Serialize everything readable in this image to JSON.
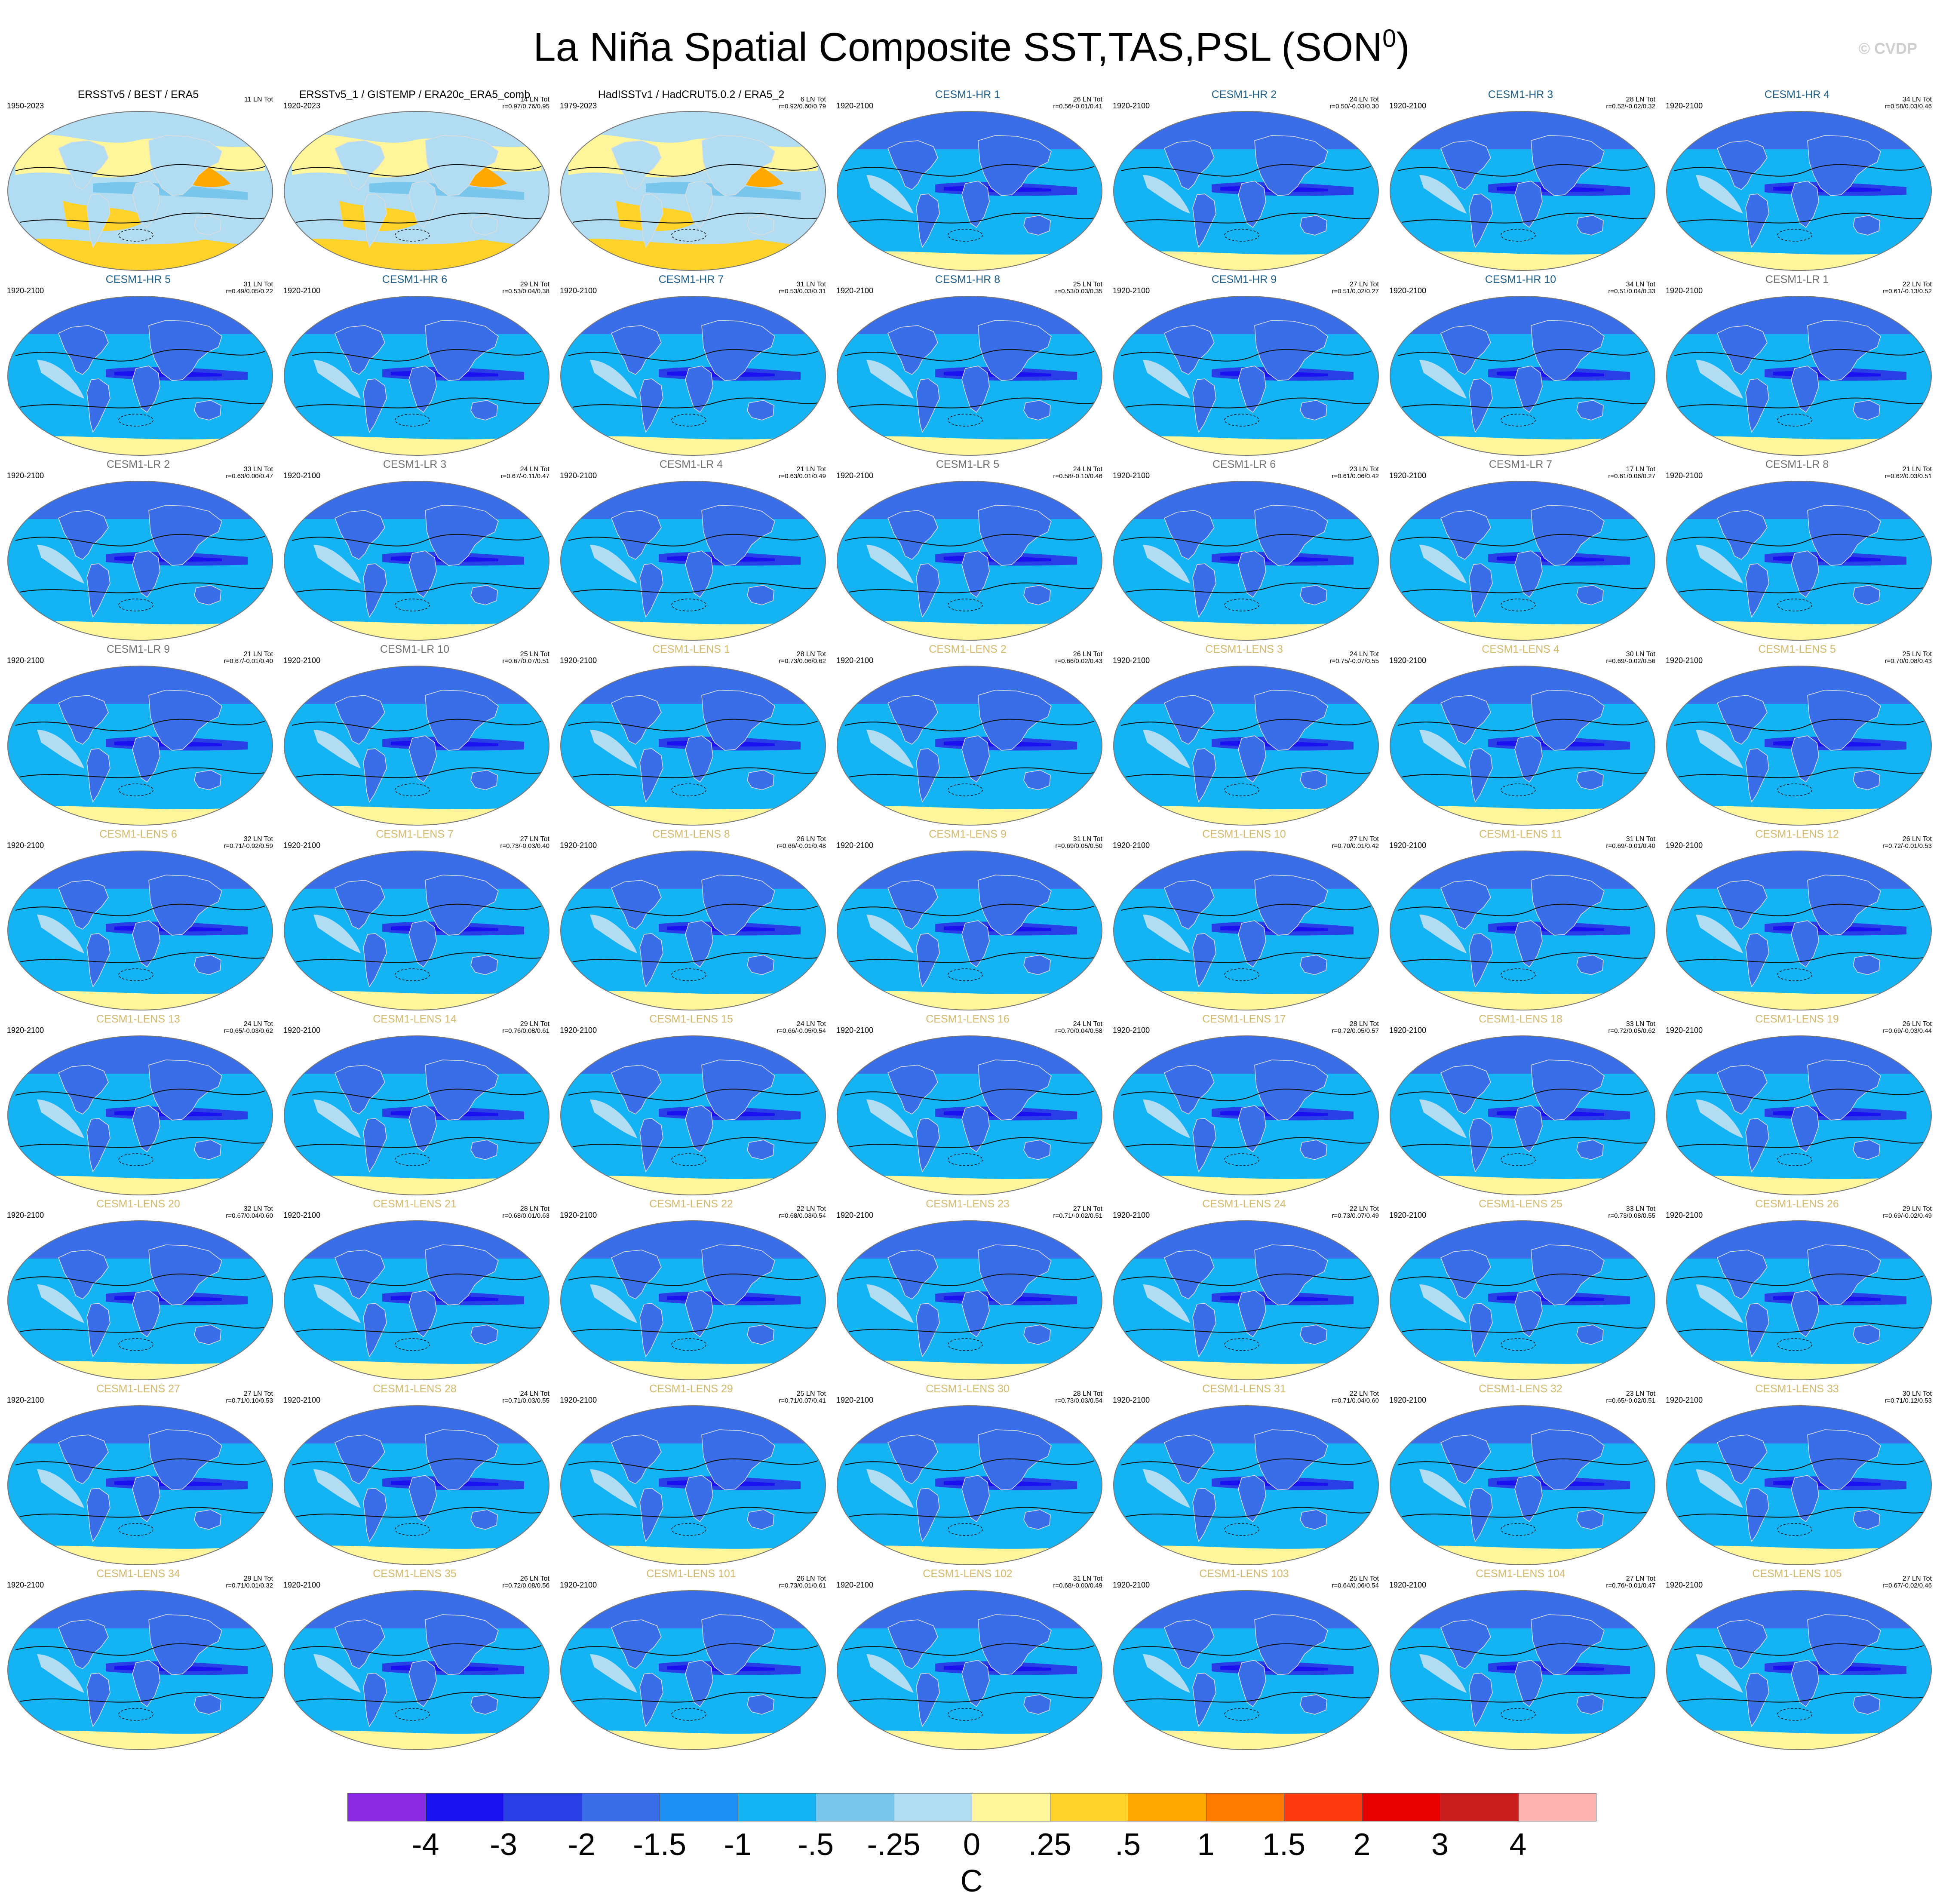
{
  "figure": {
    "title_main": "La Niña Spatial Composite SST,TAS,PSL (SON",
    "title_sup": "0",
    "title_end": ")",
    "watermark": "© CVDP",
    "units": "C"
  },
  "chart_data": {
    "type": "heatmap",
    "description_type": "panel_grid_of_global_maps",
    "colorbar": {
      "levels": [
        "-4",
        "-3",
        "-2",
        "-1.5",
        "-1",
        "-.5",
        "-.25",
        "0",
        ".25",
        ".5",
        "1",
        "1.5",
        "2",
        "3",
        "4"
      ],
      "colors": [
        "#8a2be2",
        "#1a10f0",
        "#2a3ee6",
        "#3a6ee8",
        "#1e90f4",
        "#14b4f4",
        "#78c6ec",
        "#b2dcf2",
        "#fff59a",
        "#ffd22a",
        "#ffa800",
        "#ff7a00",
        "#ff3a10",
        "#e60000",
        "#c81e1e",
        "#ffb4b4"
      ]
    },
    "panels": [
      {
        "title": "ERSSTv5 / BEST / ERA5",
        "title_color": "#000000",
        "period": "1950-2023",
        "count": "11 LN Tot",
        "stats": "",
        "style": "obs"
      },
      {
        "title": "ERSSTv5_1 / GISTEMP / ERA20c_ERA5_comb",
        "title_color": "#000000",
        "period": "1920-2023",
        "count": "14 LN Tot",
        "stats": "r=0.97/0.76/0.95",
        "style": "obs"
      },
      {
        "title": "HadISSTv1 / HadCRUT5.0.2 / ERA5_2",
        "title_color": "#000000",
        "period": "1979-2023",
        "count": "6 LN Tot",
        "stats": "r=0.92/0.60/0.79",
        "style": "obs"
      },
      {
        "title": "CESM1-HR 1",
        "title_color": "#1f5f8b",
        "period": "1920-2100",
        "count": "26 LN Tot",
        "stats": "r=0.56/-0.01/0.41",
        "style": "model"
      },
      {
        "title": "CESM1-HR 2",
        "title_color": "#1f5f8b",
        "period": "1920-2100",
        "count": "24 LN Tot",
        "stats": "r=0.50/-0.03/0.30",
        "style": "model"
      },
      {
        "title": "CESM1-HR 3",
        "title_color": "#1f5f8b",
        "period": "1920-2100",
        "count": "28 LN Tot",
        "stats": "r=0.52/-0.02/0.32",
        "style": "model"
      },
      {
        "title": "CESM1-HR 4",
        "title_color": "#1f5f8b",
        "period": "1920-2100",
        "count": "34 LN Tot",
        "stats": "r=0.58/0.03/0.46",
        "style": "model"
      },
      {
        "title": "CESM1-HR 5",
        "title_color": "#1f5f8b",
        "period": "1920-2100",
        "count": "31 LN Tot",
        "stats": "r=0.49/0.05/0.22",
        "style": "model"
      },
      {
        "title": "CESM1-HR 6",
        "title_color": "#1f5f8b",
        "period": "1920-2100",
        "count": "29 LN Tot",
        "stats": "r=0.53/0.04/0.38",
        "style": "model"
      },
      {
        "title": "CESM1-HR 7",
        "title_color": "#1f5f8b",
        "period": "1920-2100",
        "count": "31 LN Tot",
        "stats": "r=0.53/0.03/0.31",
        "style": "model"
      },
      {
        "title": "CESM1-HR 8",
        "title_color": "#1f5f8b",
        "period": "1920-2100",
        "count": "25 LN Tot",
        "stats": "r=0.53/0.03/0.35",
        "style": "model"
      },
      {
        "title": "CESM1-HR 9",
        "title_color": "#1f5f8b",
        "period": "1920-2100",
        "count": "27 LN Tot",
        "stats": "r=0.51/0.02/0.27",
        "style": "model"
      },
      {
        "title": "CESM1-HR 10",
        "title_color": "#1f5f8b",
        "period": "1920-2100",
        "count": "34 LN Tot",
        "stats": "r=0.51/0.04/0.33",
        "style": "model"
      },
      {
        "title": "CESM1-LR 1",
        "title_color": "#707070",
        "period": "1920-2100",
        "count": "22 LN Tot",
        "stats": "r=0.61/-0.13/0.52",
        "style": "model"
      },
      {
        "title": "CESM1-LR 2",
        "title_color": "#707070",
        "period": "1920-2100",
        "count": "33 LN Tot",
        "stats": "r=0.63/0.00/0.47",
        "style": "model"
      },
      {
        "title": "CESM1-LR 3",
        "title_color": "#707070",
        "period": "1920-2100",
        "count": "24 LN Tot",
        "stats": "r=0.67/-0.11/0.47",
        "style": "model"
      },
      {
        "title": "CESM1-LR 4",
        "title_color": "#707070",
        "period": "1920-2100",
        "count": "21 LN Tot",
        "stats": "r=0.63/0.01/0.49",
        "style": "model"
      },
      {
        "title": "CESM1-LR 5",
        "title_color": "#707070",
        "period": "1920-2100",
        "count": "24 LN Tot",
        "stats": "r=0.58/-0.10/0.46",
        "style": "model"
      },
      {
        "title": "CESM1-LR 6",
        "title_color": "#707070",
        "period": "1920-2100",
        "count": "23 LN Tot",
        "stats": "r=0.61/0.06/0.42",
        "style": "model"
      },
      {
        "title": "CESM1-LR 7",
        "title_color": "#707070",
        "period": "1920-2100",
        "count": "17 LN Tot",
        "stats": "r=0.61/0.06/0.27",
        "style": "model"
      },
      {
        "title": "CESM1-LR 8",
        "title_color": "#707070",
        "period": "1920-2100",
        "count": "21 LN Tot",
        "stats": "r=0.62/0.03/0.51",
        "style": "model"
      },
      {
        "title": "CESM1-LR 9",
        "title_color": "#707070",
        "period": "1920-2100",
        "count": "21 LN Tot",
        "stats": "r=0.67/-0.01/0.40",
        "style": "model"
      },
      {
        "title": "CESM1-LR 10",
        "title_color": "#707070",
        "period": "1920-2100",
        "count": "25 LN Tot",
        "stats": "r=0.67/0.07/0.51",
        "style": "model"
      },
      {
        "title": "CESM1-LENS 1",
        "title_color": "#d4b96a",
        "period": "1920-2100",
        "count": "28 LN Tot",
        "stats": "r=0.73/0.06/0.62",
        "style": "model"
      },
      {
        "title": "CESM1-LENS 2",
        "title_color": "#d4b96a",
        "period": "1920-2100",
        "count": "26 LN Tot",
        "stats": "r=0.66/0.02/0.43",
        "style": "model"
      },
      {
        "title": "CESM1-LENS 3",
        "title_color": "#d4b96a",
        "period": "1920-2100",
        "count": "24 LN Tot",
        "stats": "r=0.75/-0.07/0.55",
        "style": "model"
      },
      {
        "title": "CESM1-LENS 4",
        "title_color": "#d4b96a",
        "period": "1920-2100",
        "count": "30 LN Tot",
        "stats": "r=0.69/-0.02/0.56",
        "style": "model"
      },
      {
        "title": "CESM1-LENS 5",
        "title_color": "#d4b96a",
        "period": "1920-2100",
        "count": "25 LN Tot",
        "stats": "r=0.70/0.08/0.43",
        "style": "model"
      },
      {
        "title": "CESM1-LENS 6",
        "title_color": "#d4b96a",
        "period": "1920-2100",
        "count": "32 LN Tot",
        "stats": "r=0.71/-0.02/0.59",
        "style": "model"
      },
      {
        "title": "CESM1-LENS 7",
        "title_color": "#d4b96a",
        "period": "1920-2100",
        "count": "27 LN Tot",
        "stats": "r=0.73/-0.03/0.40",
        "style": "model"
      },
      {
        "title": "CESM1-LENS 8",
        "title_color": "#d4b96a",
        "period": "1920-2100",
        "count": "26 LN Tot",
        "stats": "r=0.66/-0.01/0.48",
        "style": "model"
      },
      {
        "title": "CESM1-LENS 9",
        "title_color": "#d4b96a",
        "period": "1920-2100",
        "count": "31 LN Tot",
        "stats": "r=0.69/0.05/0.50",
        "style": "model"
      },
      {
        "title": "CESM1-LENS 10",
        "title_color": "#d4b96a",
        "period": "1920-2100",
        "count": "27 LN Tot",
        "stats": "r=0.70/0.01/0.42",
        "style": "model"
      },
      {
        "title": "CESM1-LENS 11",
        "title_color": "#d4b96a",
        "period": "1920-2100",
        "count": "31 LN Tot",
        "stats": "r=0.69/-0.01/0.40",
        "style": "model"
      },
      {
        "title": "CESM1-LENS 12",
        "title_color": "#d4b96a",
        "period": "1920-2100",
        "count": "26 LN Tot",
        "stats": "r=0.72/-0.01/0.53",
        "style": "model"
      },
      {
        "title": "CESM1-LENS 13",
        "title_color": "#d4b96a",
        "period": "1920-2100",
        "count": "24 LN Tot",
        "stats": "r=0.65/-0.03/0.62",
        "style": "model"
      },
      {
        "title": "CESM1-LENS 14",
        "title_color": "#d4b96a",
        "period": "1920-2100",
        "count": "29 LN Tot",
        "stats": "r=0.76/0.08/0.61",
        "style": "model"
      },
      {
        "title": "CESM1-LENS 15",
        "title_color": "#d4b96a",
        "period": "1920-2100",
        "count": "24 LN Tot",
        "stats": "r=0.66/-0.05/0.54",
        "style": "model"
      },
      {
        "title": "CESM1-LENS 16",
        "title_color": "#d4b96a",
        "period": "1920-2100",
        "count": "24 LN Tot",
        "stats": "r=0.70/0.04/0.58",
        "style": "model"
      },
      {
        "title": "CESM1-LENS 17",
        "title_color": "#d4b96a",
        "period": "1920-2100",
        "count": "28 LN Tot",
        "stats": "r=0.72/0.05/0.57",
        "style": "model"
      },
      {
        "title": "CESM1-LENS 18",
        "title_color": "#d4b96a",
        "period": "1920-2100",
        "count": "33 LN Tot",
        "stats": "r=0.72/0.05/0.62",
        "style": "model"
      },
      {
        "title": "CESM1-LENS 19",
        "title_color": "#d4b96a",
        "period": "1920-2100",
        "count": "26 LN Tot",
        "stats": "r=0.69/-0.03/0.44",
        "style": "model"
      },
      {
        "title": "CESM1-LENS 20",
        "title_color": "#d4b96a",
        "period": "1920-2100",
        "count": "32 LN Tot",
        "stats": "r=0.67/0.04/0.60",
        "style": "model"
      },
      {
        "title": "CESM1-LENS 21",
        "title_color": "#d4b96a",
        "period": "1920-2100",
        "count": "28 LN Tot",
        "stats": "r=0.68/0.01/0.63",
        "style": "model"
      },
      {
        "title": "CESM1-LENS 22",
        "title_color": "#d4b96a",
        "period": "1920-2100",
        "count": "22 LN Tot",
        "stats": "r=0.68/0.03/0.54",
        "style": "model"
      },
      {
        "title": "CESM1-LENS 23",
        "title_color": "#d4b96a",
        "period": "1920-2100",
        "count": "27 LN Tot",
        "stats": "r=0.71/-0.02/0.51",
        "style": "model"
      },
      {
        "title": "CESM1-LENS 24",
        "title_color": "#d4b96a",
        "period": "1920-2100",
        "count": "22 LN Tot",
        "stats": "r=0.73/0.07/0.49",
        "style": "model"
      },
      {
        "title": "CESM1-LENS 25",
        "title_color": "#d4b96a",
        "period": "1920-2100",
        "count": "33 LN Tot",
        "stats": "r=0.73/0.08/0.55",
        "style": "model"
      },
      {
        "title": "CESM1-LENS 26",
        "title_color": "#d4b96a",
        "period": "1920-2100",
        "count": "29 LN Tot",
        "stats": "r=0.69/-0.02/0.49",
        "style": "model"
      },
      {
        "title": "CESM1-LENS 27",
        "title_color": "#d4b96a",
        "period": "1920-2100",
        "count": "27 LN Tot",
        "stats": "r=0.71/0.10/0.53",
        "style": "model"
      },
      {
        "title": "CESM1-LENS 28",
        "title_color": "#d4b96a",
        "period": "1920-2100",
        "count": "24 LN Tot",
        "stats": "r=0.71/0.03/0.55",
        "style": "model"
      },
      {
        "title": "CESM1-LENS 29",
        "title_color": "#d4b96a",
        "period": "1920-2100",
        "count": "25 LN Tot",
        "stats": "r=0.71/0.07/0.41",
        "style": "model"
      },
      {
        "title": "CESM1-LENS 30",
        "title_color": "#d4b96a",
        "period": "1920-2100",
        "count": "28 LN Tot",
        "stats": "r=0.73/0.03/0.54",
        "style": "model"
      },
      {
        "title": "CESM1-LENS 31",
        "title_color": "#d4b96a",
        "period": "1920-2100",
        "count": "22 LN Tot",
        "stats": "r=0.71/0.04/0.60",
        "style": "model"
      },
      {
        "title": "CESM1-LENS 32",
        "title_color": "#d4b96a",
        "period": "1920-2100",
        "count": "23 LN Tot",
        "stats": "r=0.65/-0.02/0.51",
        "style": "model"
      },
      {
        "title": "CESM1-LENS 33",
        "title_color": "#d4b96a",
        "period": "1920-2100",
        "count": "30 LN Tot",
        "stats": "r=0.71/0.12/0.53",
        "style": "model"
      },
      {
        "title": "CESM1-LENS 34",
        "title_color": "#d4b96a",
        "period": "1920-2100",
        "count": "29 LN Tot",
        "stats": "r=0.71/0.01/0.32",
        "style": "model"
      },
      {
        "title": "CESM1-LENS 35",
        "title_color": "#d4b96a",
        "period": "1920-2100",
        "count": "26 LN Tot",
        "stats": "r=0.72/0.08/0.56",
        "style": "model"
      },
      {
        "title": "CESM1-LENS 101",
        "title_color": "#d4b96a",
        "period": "1920-2100",
        "count": "26 LN Tot",
        "stats": "r=0.73/0.01/0.61",
        "style": "model"
      },
      {
        "title": "CESM1-LENS 102",
        "title_color": "#d4b96a",
        "period": "1920-2100",
        "count": "31 LN Tot",
        "stats": "r=0.68/-0.00/0.49",
        "style": "model"
      },
      {
        "title": "CESM1-LENS 103",
        "title_color": "#d4b96a",
        "period": "1920-2100",
        "count": "25 LN Tot",
        "stats": "r=0.64/0.06/0.54",
        "style": "model"
      },
      {
        "title": "CESM1-LENS 104",
        "title_color": "#d4b96a",
        "period": "1920-2100",
        "count": "27 LN Tot",
        "stats": "r=0.76/-0.01/0.47",
        "style": "model"
      },
      {
        "title": "CESM1-LENS 105",
        "title_color": "#d4b96a",
        "period": "1920-2100",
        "count": "27 LN Tot",
        "stats": "r=0.67/-0.02/0.46",
        "style": "model"
      }
    ]
  }
}
